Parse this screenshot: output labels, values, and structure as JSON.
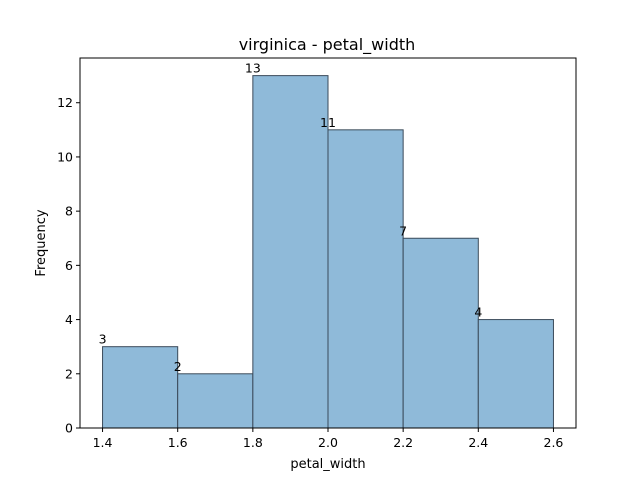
{
  "chart_data": {
    "type": "bar",
    "title": "virginica - petal_width",
    "xlabel": "petal_width",
    "ylabel": "Frequency",
    "bins": [
      {
        "x0": 1.4,
        "x1": 1.6,
        "value": 3
      },
      {
        "x0": 1.6,
        "x1": 1.8,
        "value": 2
      },
      {
        "x0": 1.8,
        "x1": 2.0,
        "value": 13
      },
      {
        "x0": 2.0,
        "x1": 2.2,
        "value": 11
      },
      {
        "x0": 2.2,
        "x1": 2.4,
        "value": 7
      },
      {
        "x0": 2.4,
        "x1": 2.6,
        "value": 4
      }
    ],
    "data_labels": [
      "3",
      "2",
      "13",
      "11",
      "7",
      "4"
    ],
    "xlim": [
      1.34,
      2.66
    ],
    "ylim": [
      0,
      13.65
    ],
    "xticks": [
      1.4,
      1.6,
      1.8,
      2.0,
      2.2,
      2.4,
      2.6
    ],
    "xtick_labels": [
      "1.4",
      "1.6",
      "1.8",
      "2.0",
      "2.2",
      "2.4",
      "2.6"
    ],
    "yticks": [
      0,
      2,
      4,
      6,
      8,
      10,
      12
    ],
    "ytick_labels": [
      "0",
      "2",
      "4",
      "6",
      "8",
      "10",
      "12"
    ],
    "grid": false,
    "bar_color": "#8fbad9",
    "bar_edge_color": "#3a4a5a"
  }
}
